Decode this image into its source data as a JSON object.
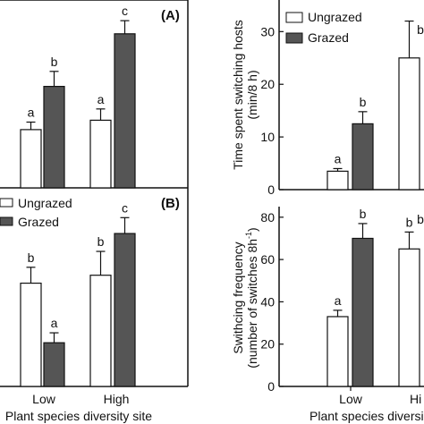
{
  "colors": {
    "ungrazed": "#ffffff",
    "grazed": "#555555",
    "axis": "#111111"
  },
  "chart_data": [
    {
      "type": "bar",
      "panel_label": "(A)",
      "categories": [
        "Low",
        "High"
      ],
      "xlabel": "",
      "ylabel": "",
      "ylim": [
        0,
        1
      ],
      "series": [
        {
          "name": "Ungrazed",
          "values": [
            0.31,
            0.36
          ],
          "errors": [
            0.04,
            0.06
          ],
          "letters": [
            "a",
            "a"
          ]
        },
        {
          "name": "Grazed",
          "values": [
            0.54,
            0.82
          ],
          "errors": [
            0.08,
            0.07
          ],
          "letters": [
            "b",
            "c"
          ]
        }
      ]
    },
    {
      "type": "bar",
      "panel_label": "(B)",
      "categories": [
        "Low",
        "High"
      ],
      "xlabel": "Plant species diversity site",
      "ylabel": "",
      "ylim": [
        0,
        1
      ],
      "legend": [
        "Ungrazed",
        "Grazed"
      ],
      "series": [
        {
          "name": "Ungrazed",
          "values": [
            0.52,
            0.56
          ],
          "errors": [
            0.08,
            0.12
          ],
          "letters": [
            "b",
            "b"
          ]
        },
        {
          "name": "Grazed",
          "values": [
            0.22,
            0.77
          ],
          "errors": [
            0.05,
            0.08
          ],
          "letters": [
            "a",
            "c"
          ]
        }
      ]
    },
    {
      "type": "bar",
      "categories": [
        "Low",
        "Hi"
      ],
      "xlabel": "Plant species diversi",
      "ylabel": "Time spent switching hosts (min/8 h)",
      "ylim": [
        0,
        36
      ],
      "yticks": [
        0,
        10,
        20,
        30
      ],
      "legend": [
        "Ungrazed",
        "Grazed"
      ],
      "series": [
        {
          "name": "Ungrazed",
          "values": [
            3.5,
            25
          ],
          "errors": [
            0.5,
            7
          ],
          "letters": [
            "a",
            ""
          ]
        },
        {
          "name": "Grazed",
          "values": [
            12.5,
            null
          ],
          "errors": [
            2.3,
            null
          ],
          "letters": [
            "b",
            "b"
          ]
        }
      ]
    },
    {
      "type": "bar",
      "categories": [
        "Low",
        "Hi"
      ],
      "xlabel": "Plant species diversi",
      "ylabel": "Swithcing frequency (number of switches 8h-1)",
      "ylim": [
        0,
        85
      ],
      "yticks": [
        0,
        20,
        40,
        60,
        80
      ],
      "series": [
        {
          "name": "Ungrazed",
          "values": [
            33,
            65
          ],
          "errors": [
            3,
            8
          ],
          "letters": [
            "a",
            "b"
          ]
        },
        {
          "name": "Grazed",
          "values": [
            70,
            null
          ],
          "errors": [
            7,
            null
          ],
          "letters": [
            "b",
            "b"
          ]
        }
      ]
    }
  ],
  "text": {
    "panelA": "(A)",
    "panelB": "(B)",
    "legend_ungrazed": "Ungrazed",
    "legend_grazed": "Grazed",
    "left_xlabel": "Plant species diversity site",
    "right_xlabel": "Plant species diversi",
    "cat_low": "Low",
    "cat_high": "High",
    "cat_hi": "Hi",
    "ylab_top_line1": "Time spent switching hosts",
    "ylab_top_line2": "(min/8 h)",
    "ylab_bot_line1": "Swithcing frequency",
    "ylab_bot_line2": "(number of switches 8h",
    "ylab_bot_sup": "-1",
    "ylab_bot_close": ")"
  }
}
